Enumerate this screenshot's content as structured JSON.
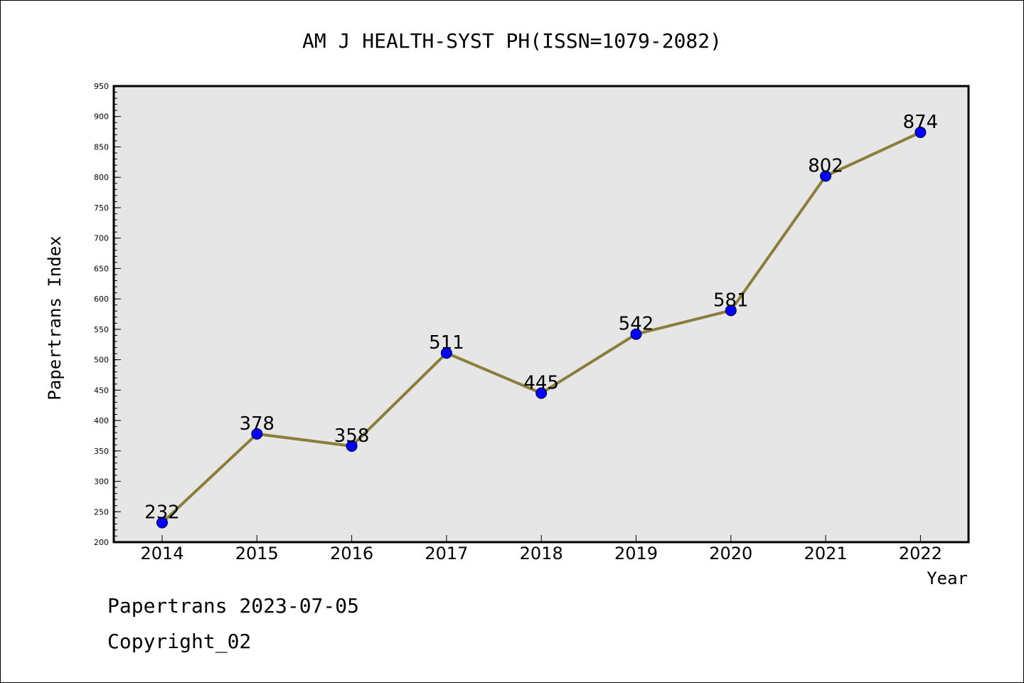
{
  "chart_data": {
    "type": "line",
    "title": "AM J HEALTH-SYST PH(ISSN=1079-2082)",
    "xlabel": "Year",
    "ylabel": "Papertrans Index",
    "categories": [
      "2014",
      "2015",
      "2016",
      "2017",
      "2018",
      "2019",
      "2020",
      "2021",
      "2022"
    ],
    "values": [
      232,
      378,
      358,
      511,
      445,
      542,
      581,
      802,
      874
    ],
    "data_labels": [
      "232",
      "378",
      "358",
      "511",
      "445",
      "542",
      "581",
      "802",
      "874"
    ],
    "ylim": [
      200,
      950
    ],
    "y_ticks": [
      "200",
      "250",
      "300",
      "350",
      "400",
      "450",
      "500",
      "550",
      "600",
      "650",
      "700",
      "750",
      "800",
      "850",
      "900",
      "950"
    ],
    "grid": false,
    "colors": {
      "plot_background": "#e6e6e6",
      "line": "#8b7d3a",
      "marker": "#0000ff"
    }
  },
  "footer": {
    "line1": "Papertrans 2023-07-05",
    "line2": "Copyright_02"
  }
}
